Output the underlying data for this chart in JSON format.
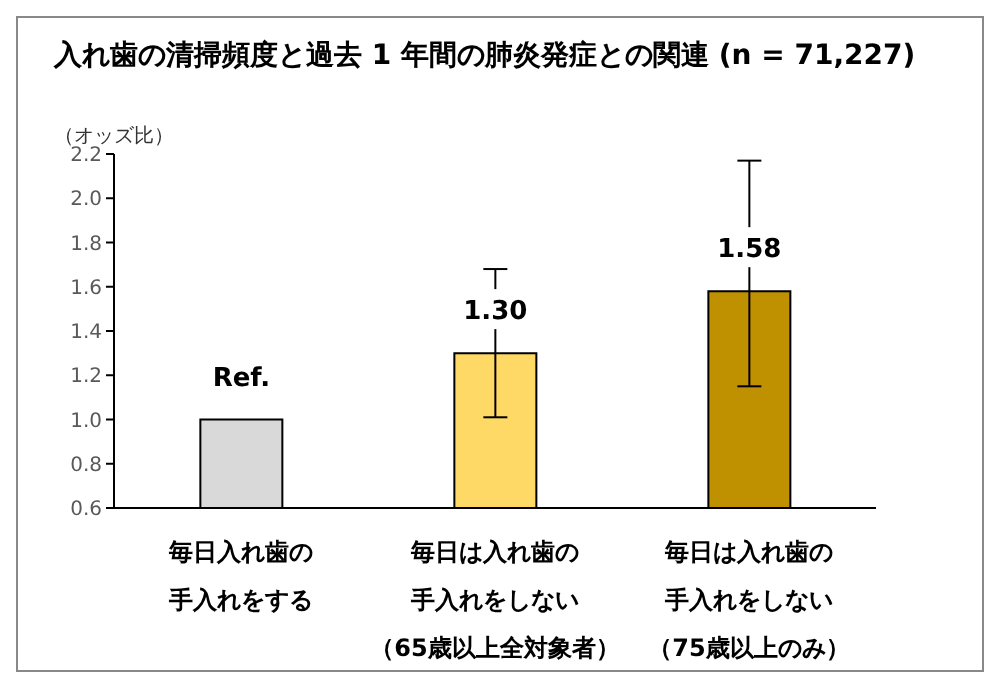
{
  "chart_data": {
    "type": "bar",
    "title": "入れ歯の清掃頻度と過去 1 年間の肺炎発症との関連 (n = 71,227)",
    "ylabel": "（オッズ比）",
    "categories": [
      "毎日入れ歯の手入れをする",
      "毎日は入れ歯の手入れをしない（65歳以上全対象者）",
      "毎日は入れ歯の手入れをしない（75歳以上のみ）"
    ],
    "values": [
      1.0,
      1.3,
      1.58
    ],
    "colors": [
      "#d9d9d9",
      "#ffd966",
      "#bf9000"
    ],
    "errors": [
      null,
      [
        1.01,
        1.68
      ],
      [
        1.15,
        2.17
      ]
    ],
    "value_labels": [
      "Ref.",
      "1.30",
      "1.58"
    ],
    "ylim": [
      0.6,
      2.2
    ],
    "yticks": [
      {
        "value": 0.6,
        "label": "0.6"
      },
      {
        "value": 0.8,
        "label": "0.8"
      },
      {
        "value": 1.0,
        "label": "1.0"
      },
      {
        "value": 1.2,
        "label": "1.2"
      },
      {
        "value": 1.4,
        "label": "1.4"
      },
      {
        "value": 1.6,
        "label": "1.6"
      },
      {
        "value": 1.8,
        "label": "1.8"
      },
      {
        "value": 2.0,
        "label": "2.0"
      },
      {
        "value": 2.2,
        "label": "2.2"
      }
    ],
    "grid": false,
    "legend": false
  }
}
